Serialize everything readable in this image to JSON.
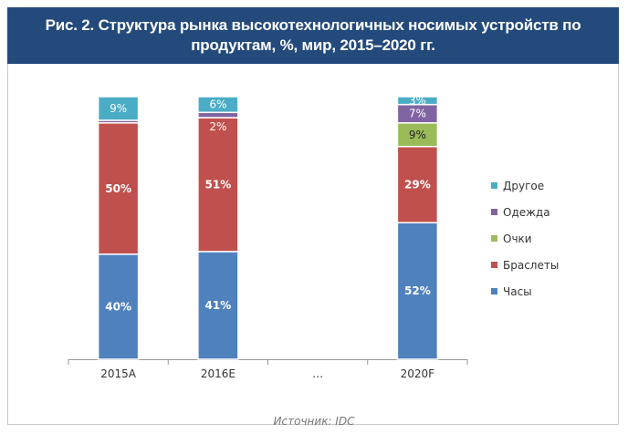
{
  "chart_data": {
    "type": "bar",
    "stacked": true,
    "title": "Рис. 2. Структура рынка высокотехнологичных носимых устройств по продуктам, %, мир, 2015–2020 гг.",
    "categories": [
      "2015A",
      "2016E",
      "…",
      "2020F"
    ],
    "series": [
      {
        "name": "Часы",
        "color": "#4f81bd",
        "values": [
          40,
          41,
          null,
          52
        ],
        "labels": [
          "40%",
          "41%",
          "",
          "52%"
        ]
      },
      {
        "name": "Браслеты",
        "color": "#c0504d",
        "values": [
          50,
          51,
          null,
          29
        ],
        "labels": [
          "50%",
          "51%",
          "",
          "29%"
        ]
      },
      {
        "name": "Очки",
        "color": "#9bbb59",
        "values": [
          0,
          0,
          null,
          9
        ],
        "labels": [
          "",
          "",
          "",
          "9%"
        ]
      },
      {
        "name": "Одежда",
        "color": "#8064a2",
        "values": [
          1,
          2,
          null,
          7
        ],
        "labels": [
          "",
          "2%",
          "",
          "7%"
        ]
      },
      {
        "name": "Другое",
        "color": "#4bacc6",
        "values": [
          9,
          6,
          null,
          3
        ],
        "labels": [
          "9%",
          "6%",
          "",
          "3%"
        ]
      }
    ],
    "legend_position": "right",
    "grid": false,
    "ylim": [
      0,
      100
    ]
  },
  "source": "Источник: IDC"
}
